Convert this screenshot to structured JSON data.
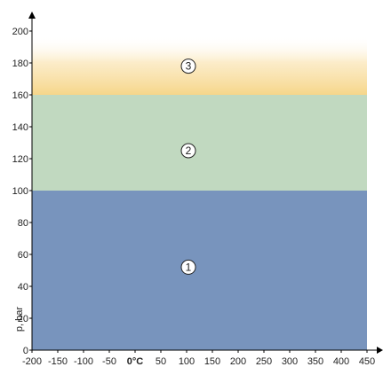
{
  "chart_data": {
    "type": "area",
    "ylabel": "p, bar",
    "xlabel": "",
    "xlim": [
      -200,
      450
    ],
    "ylim": [
      0,
      200
    ],
    "x_ticks": [
      {
        "value": -200,
        "label": "-200",
        "bold": false
      },
      {
        "value": -150,
        "label": "-150",
        "bold": false
      },
      {
        "value": -100,
        "label": "-100",
        "bold": false
      },
      {
        "value": -50,
        "label": "-50",
        "bold": false
      },
      {
        "value": 0,
        "label": "0°C",
        "bold": true
      },
      {
        "value": 50,
        "label": "50",
        "bold": false
      },
      {
        "value": 100,
        "label": "100",
        "bold": false
      },
      {
        "value": 150,
        "label": "150",
        "bold": false
      },
      {
        "value": 200,
        "label": "200",
        "bold": false
      },
      {
        "value": 250,
        "label": "250",
        "bold": false
      },
      {
        "value": 300,
        "label": "300",
        "bold": false
      },
      {
        "value": 350,
        "label": "350",
        "bold": false
      },
      {
        "value": 400,
        "label": "400",
        "bold": false
      },
      {
        "value": 450,
        "label": "450",
        "bold": false
      }
    ],
    "y_ticks": [
      {
        "value": 0,
        "label": "0"
      },
      {
        "value": 20,
        "label": "20"
      },
      {
        "value": 40,
        "label": "40"
      },
      {
        "value": 60,
        "label": "60"
      },
      {
        "value": 80,
        "label": "80"
      },
      {
        "value": 100,
        "label": "100"
      },
      {
        "value": 120,
        "label": "120"
      },
      {
        "value": 140,
        "label": "140"
      },
      {
        "value": 160,
        "label": "160"
      },
      {
        "value": 180,
        "label": "180"
      },
      {
        "value": 200,
        "label": "200"
      }
    ],
    "zones": [
      {
        "label": "1",
        "x_from": -200,
        "x_to": 450,
        "y_from": 0,
        "y_to": 100,
        "color": "#7894bd",
        "gradient": false,
        "label_x": 100,
        "label_y": 52
      },
      {
        "label": "2",
        "x_from": -200,
        "x_to": 450,
        "y_from": 100,
        "y_to": 160,
        "color": "#c1d9c0",
        "gradient": false,
        "label_x": 100,
        "label_y": 125
      },
      {
        "label": "3",
        "x_from": -200,
        "x_to": 450,
        "y_from": 160,
        "y_to": 197,
        "color": "#f6dc96",
        "gradient": true,
        "label_x": 100,
        "label_y": 178
      }
    ],
    "grid": false,
    "legend": "none"
  }
}
